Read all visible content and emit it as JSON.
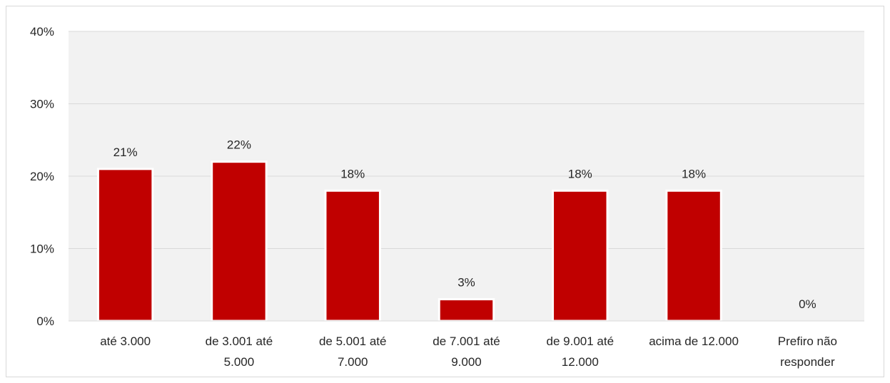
{
  "chart_data": {
    "type": "bar",
    "categories": [
      "até 3.000",
      "de 3.001 até 5.000",
      "de 5.001 até 7.000",
      "de 7.001 até 9.000",
      "de 9.001 até 12.000",
      "acima de 12.000",
      "Prefiro não responder"
    ],
    "category_lines": [
      [
        "até 3.000"
      ],
      [
        "de 3.001 até",
        "5.000"
      ],
      [
        "de 5.001 até",
        "7.000"
      ],
      [
        "de 7.001 até",
        "9.000"
      ],
      [
        "de 9.001 até",
        "12.000"
      ],
      [
        "acima de 12.000"
      ],
      [
        "Prefiro não",
        "responder"
      ]
    ],
    "values": [
      21,
      22,
      18,
      3,
      18,
      18,
      0
    ],
    "data_labels": [
      "21%",
      "22%",
      "18%",
      "3%",
      "18%",
      "18%",
      "0%"
    ],
    "ylim": [
      0,
      40
    ],
    "yticks": [
      0,
      10,
      20,
      30,
      40
    ],
    "ytick_labels": [
      "0%",
      "10%",
      "20%",
      "30%",
      "40%"
    ],
    "title": "",
    "xlabel": "",
    "ylabel": "",
    "grid": true,
    "legend": "none",
    "bar_color": "#c00000",
    "bar_edge_color": "#ffffff",
    "plot_background": "#f2f2f2",
    "gridline_color": "#d9d9d9"
  }
}
